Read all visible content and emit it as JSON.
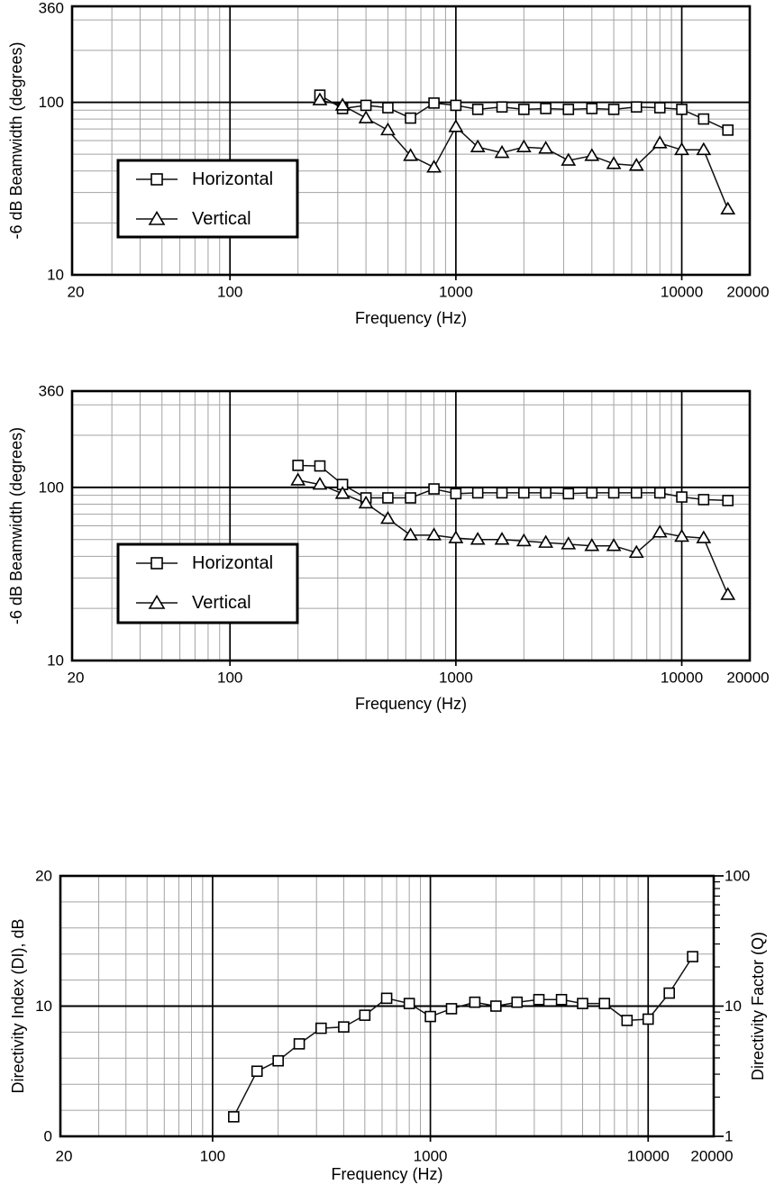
{
  "colors": {
    "background": "#ffffff",
    "axis": "#000000",
    "grid": "#a3a3a3",
    "series": "#111111",
    "marker_fill": "#ffffff"
  },
  "chart_data": [
    {
      "id": "beamwidth-chart-1",
      "type": "line",
      "x_scale": "log",
      "y_scale": "log",
      "xlim": [
        20,
        20000
      ],
      "ylim": [
        10,
        360
      ],
      "grid": true,
      "xlabel": "Frequency (Hz)",
      "ylabel": "-6 dB Beamwidth (degrees)",
      "x_ticks": [
        {
          "v": 20,
          "label": "20"
        },
        {
          "v": 100,
          "label": "100"
        },
        {
          "v": 1000,
          "label": "1000"
        },
        {
          "v": 10000,
          "label": "10000"
        },
        {
          "v": 20000,
          "label": "20000"
        }
      ],
      "y_ticks": [
        {
          "v": 360,
          "label": "360"
        },
        {
          "v": 100,
          "label": "100"
        },
        {
          "v": 10,
          "label": "10"
        }
      ],
      "legend": {
        "position": "inside-lower-left"
      },
      "frequencies": [
        250,
        315,
        400,
        500,
        630,
        800,
        1000,
        1250,
        1600,
        2000,
        2500,
        3150,
        4000,
        5000,
        6300,
        8000,
        10000,
        12500,
        16000
      ],
      "series": [
        {
          "name": "Horizontal",
          "marker": "square",
          "values": [
            110,
            92,
            96,
            93,
            81,
            99,
            96,
            91,
            94,
            91,
            92,
            91,
            92,
            91,
            94,
            93,
            91,
            80,
            69
          ]
        },
        {
          "name": "Vertical",
          "marker": "triangle",
          "values": [
            103,
            96,
            81,
            69,
            49,
            42,
            72,
            55,
            51,
            55,
            54,
            46,
            49,
            44,
            43,
            58,
            53,
            53,
            24
          ]
        }
      ]
    },
    {
      "id": "beamwidth-chart-2",
      "type": "line",
      "x_scale": "log",
      "y_scale": "log",
      "xlim": [
        20,
        20000
      ],
      "ylim": [
        10,
        360
      ],
      "grid": true,
      "xlabel": "Frequency (Hz)",
      "ylabel": "-6 dB Beamwidth (degrees)",
      "x_ticks": [
        {
          "v": 20,
          "label": "20"
        },
        {
          "v": 100,
          "label": "100"
        },
        {
          "v": 1000,
          "label": "1000"
        },
        {
          "v": 10000,
          "label": "10000"
        },
        {
          "v": 20000,
          "label": "20000"
        }
      ],
      "y_ticks": [
        {
          "v": 360,
          "label": "360"
        },
        {
          "v": 100,
          "label": "100"
        },
        {
          "v": 10,
          "label": "10"
        }
      ],
      "legend": {
        "position": "inside-lower-left"
      },
      "frequencies": [
        200,
        250,
        315,
        400,
        500,
        630,
        800,
        1000,
        1250,
        1600,
        2000,
        2500,
        3150,
        4000,
        5000,
        6300,
        8000,
        10000,
        12500,
        16000
      ],
      "series": [
        {
          "name": "Horizontal",
          "marker": "square",
          "values": [
            134,
            133,
            104,
            87,
            87,
            87,
            98,
            92,
            93,
            93,
            93,
            93,
            92,
            93,
            93,
            93,
            93,
            88,
            85,
            84
          ]
        },
        {
          "name": "Vertical",
          "marker": "triangle",
          "values": [
            110,
            104,
            92,
            81,
            66,
            53,
            53,
            51,
            50,
            50,
            49,
            48,
            47,
            46,
            46,
            42,
            55,
            52,
            51,
            24
          ]
        }
      ]
    },
    {
      "id": "directivity-chart",
      "type": "line",
      "x_scale": "log",
      "y_scale": "linear",
      "xlim": [
        20,
        20000
      ],
      "ylim": [
        0,
        20
      ],
      "grid": true,
      "xlabel": "Frequency (Hz)",
      "ylabel": "Directivity Index (DI), dB",
      "ylabel_right": "Directivity Factor (Q)",
      "x_ticks": [
        {
          "v": 20,
          "label": "20"
        },
        {
          "v": 100,
          "label": "100"
        },
        {
          "v": 1000,
          "label": "1000"
        },
        {
          "v": 10000,
          "label": "10000"
        },
        {
          "v": 20000,
          "label": "20000"
        }
      ],
      "y_ticks": [
        {
          "v": 20,
          "label": "20"
        },
        {
          "v": 10,
          "label": "10"
        },
        {
          "v": 0,
          "label": "0"
        }
      ],
      "y_ticks_right": [
        {
          "q": 100,
          "label": "100"
        },
        {
          "q": 10,
          "label": "10"
        },
        {
          "q": 1,
          "label": "1"
        }
      ],
      "frequencies": [
        125,
        160,
        200,
        250,
        315,
        400,
        500,
        630,
        800,
        1000,
        1250,
        1600,
        2000,
        2500,
        3150,
        4000,
        5000,
        6300,
        8000,
        10000,
        12500,
        16000
      ],
      "series": [
        {
          "name": "Directivity Index",
          "marker": "square",
          "values": [
            1.5,
            5.0,
            5.8,
            7.1,
            8.3,
            8.4,
            9.3,
            10.6,
            10.2,
            9.2,
            9.8,
            10.3,
            10.0,
            10.3,
            10.5,
            10.5,
            10.2,
            10.2,
            8.9,
            9.0,
            11.0,
            13.8
          ]
        }
      ]
    }
  ]
}
